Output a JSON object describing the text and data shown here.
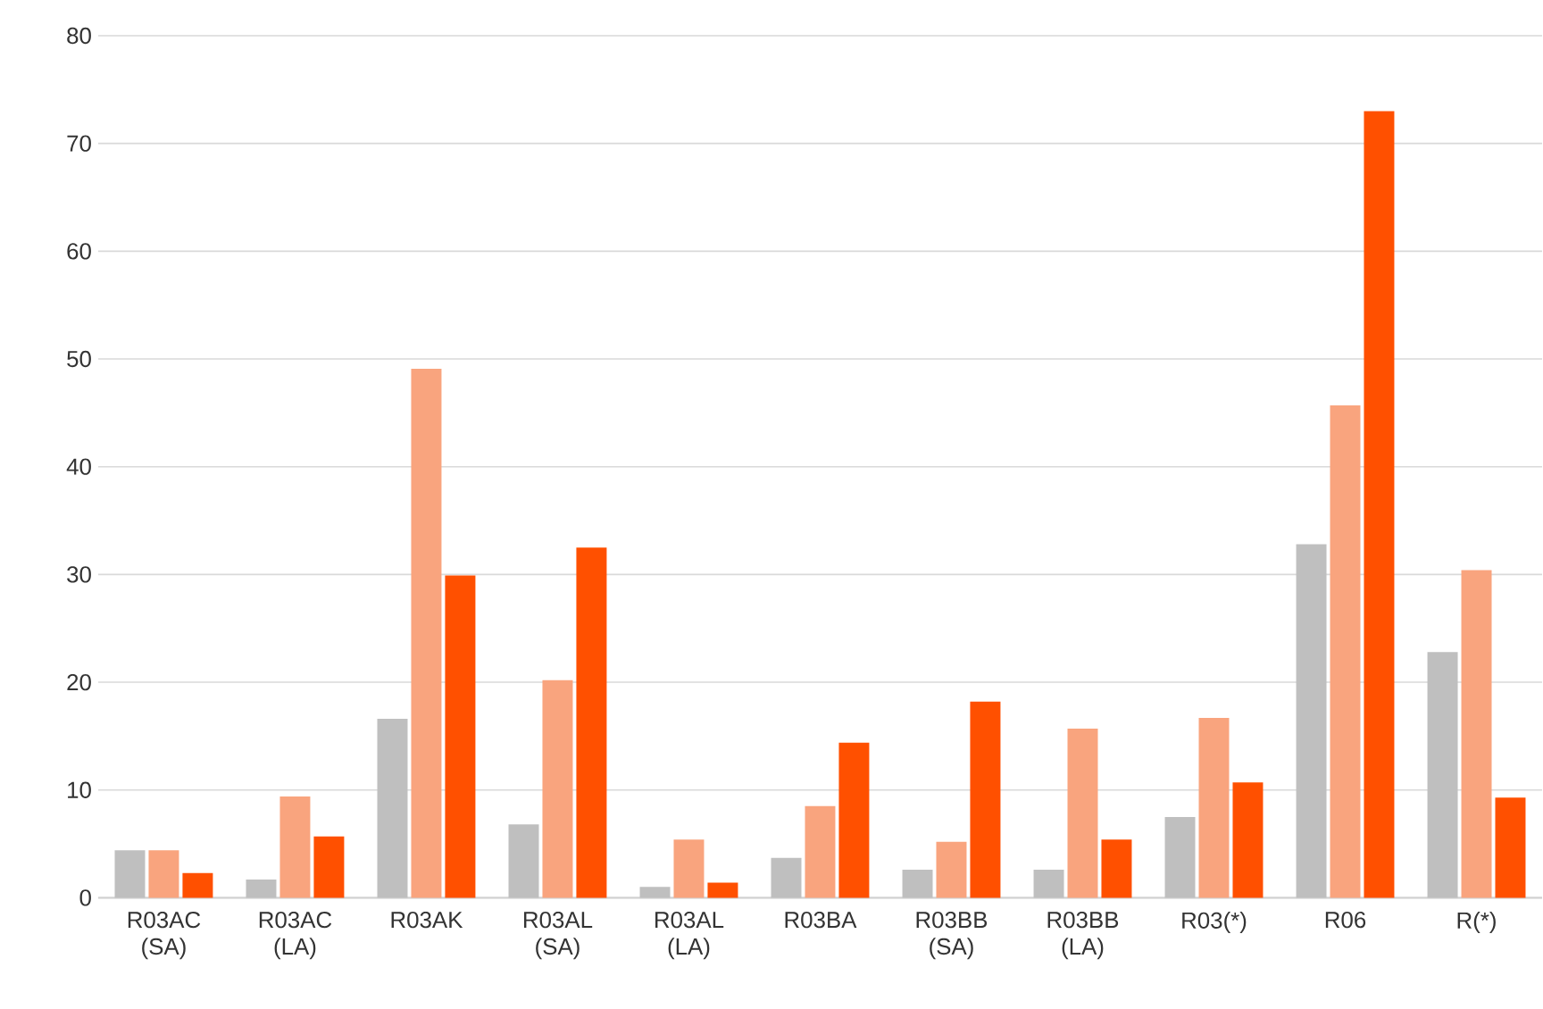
{
  "chart_data": {
    "type": "bar",
    "categories": [
      "R03AC (SA)",
      "R03AC (LA)",
      "R03AK",
      "R03AL (SA)",
      "R03AL (LA)",
      "R03BA",
      "R03BB (SA)",
      "R03BB (LA)",
      "R03(*)",
      "R06",
      "R(*)"
    ],
    "series": [
      {
        "color": "#bfbfbf",
        "values": [
          4.4,
          1.7,
          16.6,
          6.8,
          1.0,
          3.7,
          2.6,
          2.6,
          7.5,
          32.8,
          22.8
        ]
      },
      {
        "color": "#f9a47e",
        "values": [
          4.4,
          9.4,
          49.1,
          20.2,
          5.4,
          8.5,
          5.2,
          15.7,
          16.7,
          45.7,
          30.4
        ]
      },
      {
        "color": "#ff5000",
        "values": [
          2.3,
          5.7,
          29.9,
          32.5,
          1.4,
          14.4,
          18.2,
          5.4,
          10.7,
          73.0,
          9.3
        ]
      }
    ],
    "ylim": [
      0,
      80
    ],
    "yticks": [
      0,
      10,
      20,
      30,
      40,
      50,
      60,
      70,
      80
    ],
    "grid": "y"
  }
}
